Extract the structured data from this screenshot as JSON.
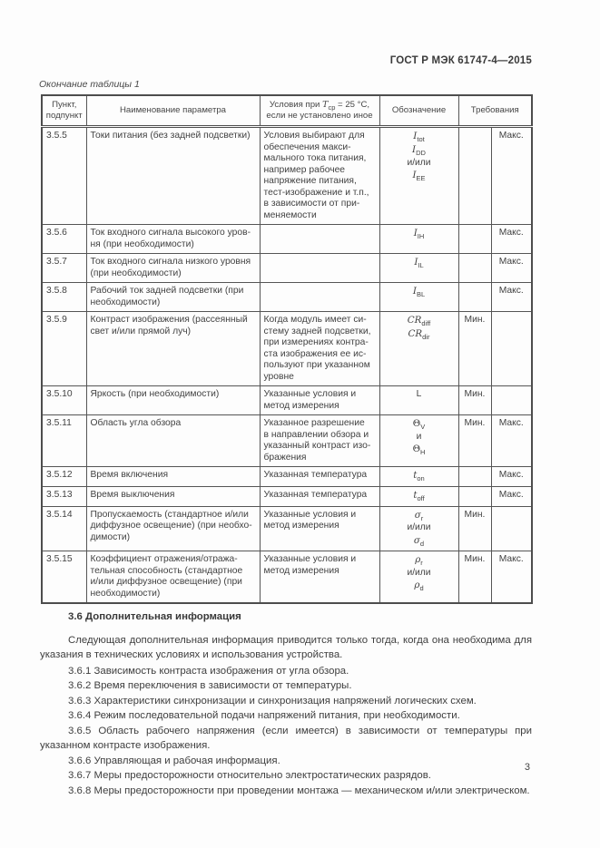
{
  "header": {
    "doc_code": "ГОСТ Р МЭК 61747-4—2015"
  },
  "table": {
    "caption": "Окончание таблицы 1",
    "columns": {
      "item": "Пункт,\nподпункт",
      "name": "Наименование параметра",
      "designation": "Обозначение",
      "requirements": "Требования"
    },
    "cond_header": {
      "pre": "Условия при ",
      "sym": "T",
      "sub": "ср",
      "post": " = 25 °C,",
      "line2": "если не установлено иное"
    },
    "rows": [
      {
        "item": "3.5.5",
        "name": "Токи питания (без задней подсветки)",
        "conditions": "Условия выбирают для\nобеспечения макси-\nмального тока питания,\nнапример рабочее\nнапряжение питания,\nтест-изображение и т.п.,\nв зависимости от при-\nменяемости",
        "designation": [
          {
            "t": "I",
            "sub": "tot",
            "it": true
          },
          {
            "t": "I",
            "sub": "DD",
            "it": true
          },
          {
            "t": "и/или"
          },
          {
            "t": "I",
            "sub": "EE",
            "it": true
          }
        ],
        "min": "",
        "max": "Макс."
      },
      {
        "item": "3.5.6",
        "name": "Ток входного сигнала высокого уров-\nня (при необходимости)",
        "conditions": "",
        "designation": [
          {
            "t": "I",
            "sub": "IH",
            "it": true
          }
        ],
        "min": "",
        "max": "Макс."
      },
      {
        "item": "3.5.7",
        "name": "Ток входного сигнала низкого уровня\n(при необходимости)",
        "conditions": "",
        "designation": [
          {
            "t": "I",
            "sub": "IL",
            "it": true
          }
        ],
        "min": "",
        "max": "Макс."
      },
      {
        "item": "3.5.8",
        "name": "Рабочий ток задней подсветки (при\nнеобходимости)",
        "conditions": "",
        "designation": [
          {
            "t": "I",
            "sub": "BL",
            "it": true
          }
        ],
        "min": "",
        "max": "Макс."
      },
      {
        "item": "3.5.9",
        "name": "Контраст изображения (рассеянный\nсвет и/или прямой луч)",
        "conditions": "Когда модуль имеет си-\nстему задней подсветки,\nпри измерениях контра-\nста изображения ее ис-\nпользуют при указанном\nуровне",
        "designation": [
          {
            "t": "CR",
            "sub": "diff",
            "it": true
          },
          {
            "t": "CR",
            "sub": "dir",
            "it": true
          }
        ],
        "min": "Мин.",
        "max": ""
      },
      {
        "item": "3.5.10",
        "name": "Яркость (при необходимости)",
        "conditions": "Указанные условия и\nметод измерения",
        "designation": [
          {
            "t": "L"
          }
        ],
        "min": "Мин.",
        "max": ""
      },
      {
        "item": "3.5.11",
        "name": "Область угла обзора",
        "conditions": "Указанное разрешение\nв направлении обзора и\nуказанный контраст изо-\nбражения",
        "designation": [
          {
            "t": "Θ",
            "sub": "V"
          },
          {
            "t": "и"
          },
          {
            "t": "Θ",
            "sub": "H"
          }
        ],
        "min": "Мин.",
        "max": "Макс."
      },
      {
        "item": "3.5.12",
        "name": "Время включения",
        "conditions": "Указанная температура",
        "designation": [
          {
            "t": "t",
            "sub": "on",
            "it": true
          }
        ],
        "min": "",
        "max": "Макс."
      },
      {
        "item": "3.5.13",
        "name": "Время выключения",
        "conditions": "Указанная температура",
        "designation": [
          {
            "t": "t",
            "sub": "off",
            "it": true
          }
        ],
        "min": "",
        "max": "Макс."
      },
      {
        "item": "3.5.14",
        "name": "Пропускаемость (стандартное и/или\nдиффузное освещение) (при необхо-\nдимости)",
        "conditions": "Указанные условия и\nметод измерения",
        "designation": [
          {
            "t": "σ",
            "sub": "r",
            "it": true
          },
          {
            "t": "и/или"
          },
          {
            "t": "σ",
            "sub": "d",
            "it": true
          }
        ],
        "min": "Мин.",
        "max": ""
      },
      {
        "item": "3.5.15",
        "name": "Коэффициент отражения/отража-\nтельная способность (стандартное\nи/или диффузное освещение) (при\nнеобходимости)",
        "conditions": "Указанные условия и\nметод измерения",
        "designation": [
          {
            "t": "ρ",
            "sub": "r",
            "it": true
          },
          {
            "t": "и/или"
          },
          {
            "t": "ρ",
            "sub": "d",
            "it": true
          }
        ],
        "min": "Мин.",
        "max": "Макс."
      }
    ]
  },
  "section": {
    "heading": "3.6 Дополнительная информация",
    "paragraph": "Следующая дополнительная информация приводится только тогда, когда она необходима для указания в технических условиях и использования устройства.",
    "items": [
      "3.6.1 Зависимость контраста изображения от угла обзора.",
      "3.6.2 Время переключения в зависимости от температуры.",
      "3.6.3 Характеристики синхронизации и синхронизация напряжений логических схем.",
      "3.6.4 Режим последовательной подачи напряжений питания, при необходимости.",
      "3.6.5 Область рабочего напряжения (если имеется) в зависимости от температуры при указанном контрасте изображения.",
      "3.6.6 Управляющая и рабочая информация.",
      "3.6.7 Меры предосторожности относительно электростатических разрядов.",
      "3.6.8 Меры предосторожности при проведении монтажа — механическом и/или электрическом."
    ]
  },
  "footer": {
    "page_number": "3"
  }
}
